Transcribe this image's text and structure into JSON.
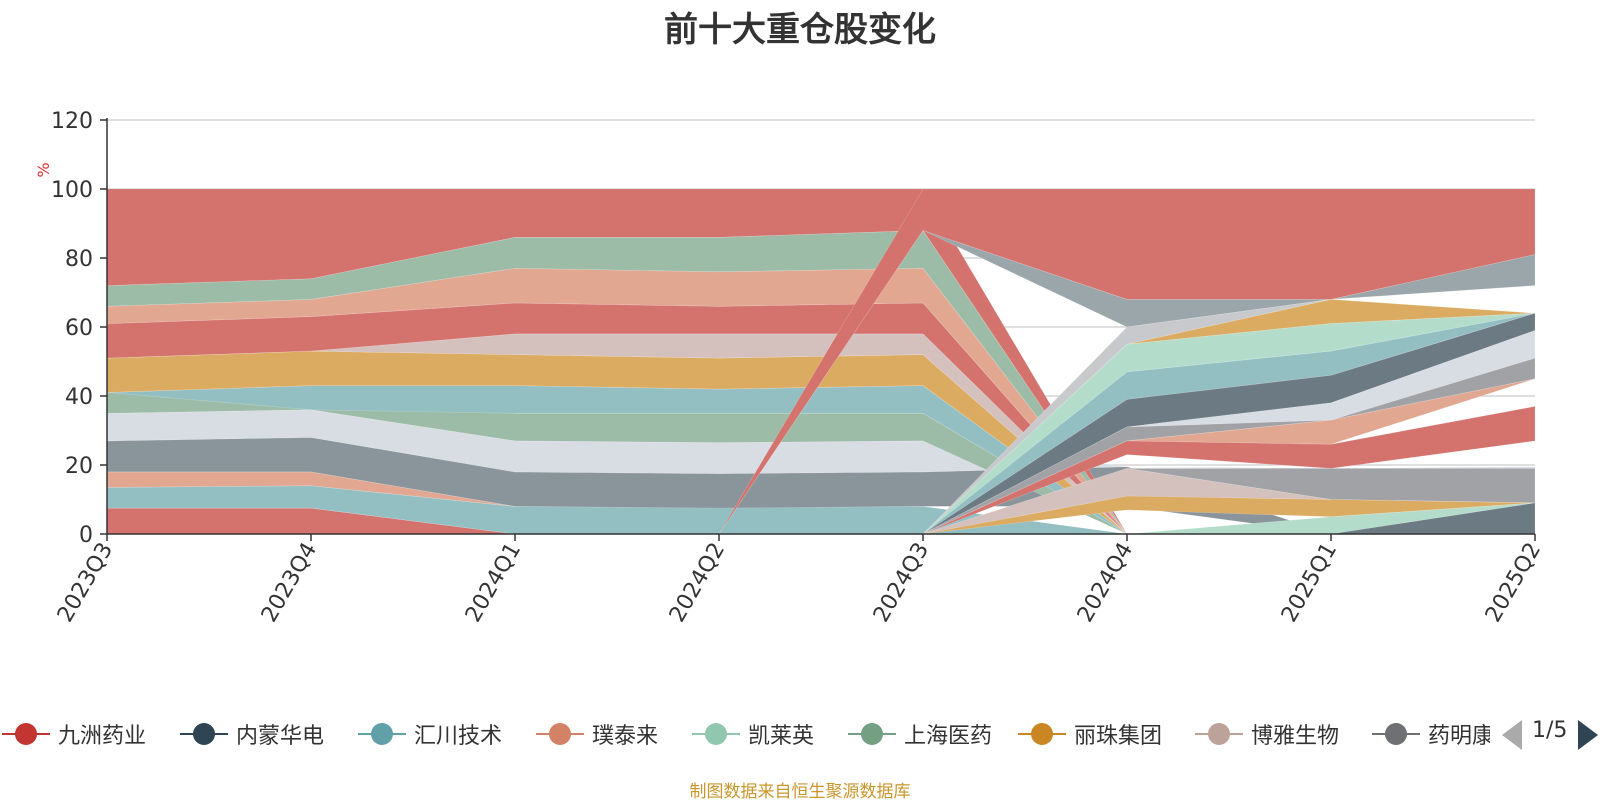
{
  "title": "前十大重仓股变化",
  "source_note": "制图数据来自恒生聚源数据库",
  "colors": {
    "source_note": "#c9962c",
    "axis_unit": "#e03030"
  },
  "legend": {
    "items": [
      {
        "name": "九洲药业",
        "color": "#c23531"
      },
      {
        "name": "内蒙华电",
        "color": "#2f4554"
      },
      {
        "name": "汇川技术",
        "color": "#61a0a8"
      },
      {
        "name": "璞泰来",
        "color": "#d48265"
      },
      {
        "name": "凯莱英",
        "color": "#91c7ae"
      },
      {
        "name": "上海医药",
        "color": "#749f83"
      },
      {
        "name": "丽珠集团",
        "color": "#ca8622"
      },
      {
        "name": "博雅生物",
        "color": "#bda29a"
      },
      {
        "name": "药明康德",
        "color": "#6e7074"
      }
    ],
    "page_indicator": "1/5"
  },
  "chart_data": {
    "type": "area",
    "title": "前十大重仓股变化",
    "ylabel": "%",
    "xlabel": "",
    "ylim": [
      0,
      120
    ],
    "yticks": [
      "0",
      "20",
      "40",
      "60",
      "80",
      "100",
      "120"
    ],
    "categories": [
      "2023Q3",
      "2023Q4",
      "2024Q1",
      "2024Q2",
      "2024Q3",
      "2024Q4",
      "2025Q1",
      "2025Q2"
    ],
    "grid": true,
    "legend_position": "bottom",
    "stacked_percent": true,
    "bands": [
      {
        "color": "#d4726e",
        "lower": [
          0,
          0,
          0,
          0,
          0,
          0,
          0,
          0
        ],
        "upper": [
          7.5,
          7.5,
          0,
          0,
          0,
          0,
          0,
          0
        ]
      },
      {
        "color": "#93bfc3",
        "lower": [
          7.5,
          7.5,
          0,
          0,
          0,
          0,
          0,
          0
        ],
        "upper": [
          13.5,
          14,
          8,
          8,
          8,
          0,
          0,
          0
        ]
      },
      {
        "color": "#e1a791",
        "lower": [
          13.5,
          14,
          8,
          8,
          8,
          8,
          0,
          0
        ],
        "upper": [
          18,
          18,
          8,
          8,
          8,
          8,
          0,
          0
        ]
      },
      {
        "color": "#8a959b",
        "lower": [
          18,
          18,
          8,
          7.5,
          8,
          8,
          0,
          0
        ],
        "upper": [
          27,
          28,
          18,
          17.5,
          18,
          19.5,
          0,
          0
        ]
      },
      {
        "color": "#d8dde3",
        "lower": [
          27,
          28,
          18,
          17.5,
          18,
          19.5,
          18.5,
          19
        ],
        "upper": [
          35,
          36,
          27,
          26.5,
          27,
          19.5,
          19,
          19.5
        ]
      },
      {
        "color": "#9cbca8",
        "lower": [
          35,
          36,
          27,
          26.5,
          27,
          0,
          0,
          0
        ],
        "upper": [
          41,
          42,
          35,
          35,
          35,
          0,
          0,
          0
        ]
      },
      {
        "color": "#93bfc3",
        "lower": [
          41,
          36,
          35,
          35,
          35,
          0,
          0,
          0
        ],
        "upper": [
          41,
          43,
          43,
          42,
          43,
          0,
          0,
          0
        ]
      },
      {
        "color": "#dcab62",
        "lower": [
          41,
          43,
          43,
          42,
          43,
          0,
          0,
          0
        ],
        "upper": [
          51,
          53,
          52,
          51,
          52,
          0,
          0,
          0
        ]
      },
      {
        "color": "#d4c0bc",
        "lower": [
          51,
          53,
          52,
          51,
          52,
          0,
          0,
          0
        ],
        "upper": [
          51,
          53,
          58,
          58,
          58,
          0,
          0,
          0
        ]
      },
      {
        "color": "#d4726e",
        "lower": [
          51,
          53,
          58,
          58,
          58,
          0,
          0,
          0
        ],
        "upper": [
          61,
          63,
          67,
          66,
          67,
          0,
          0,
          0
        ]
      },
      {
        "color": "#e1a791",
        "lower": [
          61,
          63,
          67,
          66,
          67,
          0,
          0,
          0
        ],
        "upper": [
          66,
          68,
          77,
          76,
          77,
          0,
          0,
          0
        ]
      },
      {
        "color": "#9cbca8",
        "lower": [
          66,
          68,
          77,
          76,
          77,
          0,
          0,
          0
        ],
        "upper": [
          72,
          74,
          86,
          86,
          88,
          0,
          0,
          0
        ]
      },
      {
        "color": "#d4726e",
        "lower": [
          72,
          74,
          86,
          86,
          88,
          0,
          0,
          0
        ],
        "upper": [
          100,
          100,
          100,
          100,
          100,
          0,
          0,
          0
        ]
      },
      {
        "color": "#9ba6ab",
        "lower": [
          0,
          0,
          0,
          0,
          88,
          60,
          68,
          72
        ],
        "upper": [
          0,
          0,
          0,
          0,
          88,
          68,
          68,
          81
        ]
      },
      {
        "color": "#d4726e",
        "lower": [
          0,
          0,
          0,
          0,
          88,
          68,
          68,
          81
        ],
        "upper": [
          0,
          0,
          0,
          0,
          100,
          100,
          100,
          100
        ]
      },
      {
        "color": "#c8c9cc",
        "lower": [
          0,
          0,
          0,
          0,
          0,
          55,
          68,
          72
        ],
        "upper": [
          0,
          0,
          0,
          0,
          0,
          60,
          68,
          72
        ]
      },
      {
        "color": "#dcab62",
        "lower": [
          0,
          0,
          0,
          0,
          0,
          55,
          61,
          64
        ],
        "upper": [
          0,
          0,
          0,
          0,
          0,
          55,
          68,
          64
        ]
      },
      {
        "color": "#b3ddca",
        "lower": [
          0,
          0,
          0,
          0,
          0,
          47,
          53,
          64
        ],
        "upper": [
          0,
          0,
          0,
          0,
          0,
          55,
          61,
          64
        ]
      },
      {
        "color": "#93bfc3",
        "lower": [
          0,
          0,
          0,
          0,
          0,
          39,
          46,
          64
        ],
        "upper": [
          0,
          0,
          0,
          0,
          0,
          47,
          53,
          64
        ]
      },
      {
        "color": "#6c7a84",
        "lower": [
          0,
          0,
          0,
          0,
          0,
          31,
          38,
          59
        ],
        "upper": [
          0,
          0,
          0,
          0,
          0,
          39,
          46,
          64
        ]
      },
      {
        "color": "#d8dde3",
        "lower": [
          0,
          0,
          0,
          0,
          0,
          31,
          33,
          51
        ],
        "upper": [
          0,
          0,
          0,
          0,
          0,
          31,
          38,
          59
        ]
      },
      {
        "color": "#a0a2a6",
        "lower": [
          0,
          0,
          0,
          0,
          0,
          27,
          33,
          45
        ],
        "upper": [
          0,
          0,
          0,
          0,
          0,
          31,
          33,
          51
        ]
      },
      {
        "color": "#e1a791",
        "lower": [
          0,
          0,
          0,
          0,
          0,
          27,
          26,
          45
        ],
        "upper": [
          0,
          0,
          0,
          0,
          0,
          27,
          33,
          45
        ]
      },
      {
        "color": "#d4726e",
        "lower": [
          0,
          0,
          0,
          0,
          0,
          23,
          19,
          27
        ],
        "upper": [
          0,
          0,
          0,
          0,
          0,
          27,
          26,
          37
        ]
      },
      {
        "color": "#a0a2a6",
        "lower": [
          0,
          0,
          0,
          0,
          0,
          19,
          10,
          9
        ],
        "upper": [
          0,
          0,
          0,
          0,
          0,
          19,
          19,
          19
        ]
      },
      {
        "color": "#d4c0bc",
        "lower": [
          0,
          0,
          0,
          0,
          0,
          11,
          10,
          9
        ],
        "upper": [
          0,
          0,
          0,
          0,
          0,
          19,
          10,
          9
        ]
      },
      {
        "color": "#dcab62",
        "lower": [
          0,
          0,
          0,
          0,
          0,
          7,
          5,
          9
        ],
        "upper": [
          0,
          0,
          0,
          0,
          0,
          11,
          10,
          9
        ]
      },
      {
        "color": "#b3ddca",
        "lower": [
          0,
          0,
          0,
          0,
          0,
          0,
          0,
          9
        ],
        "upper": [
          0,
          0,
          0,
          0,
          0,
          0,
          5,
          9
        ]
      },
      {
        "color": "#6c7a84",
        "lower": [
          0,
          0,
          0,
          0,
          0,
          0,
          0,
          0
        ],
        "upper": [
          0,
          0,
          0,
          0,
          0,
          0,
          0,
          9
        ]
      }
    ]
  }
}
